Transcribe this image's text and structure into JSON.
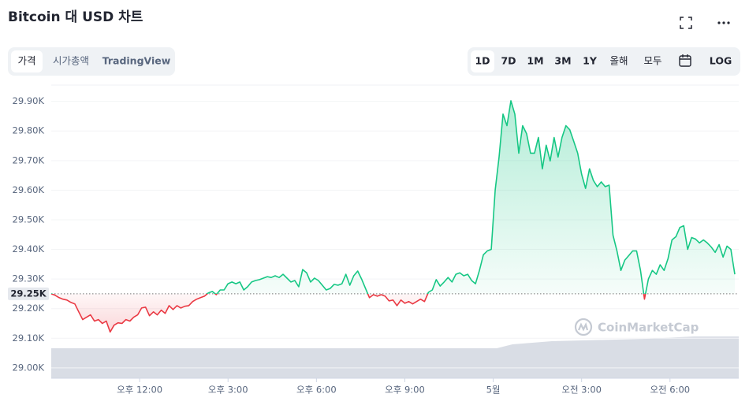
{
  "title": "Bitcoin 대 USD 차트",
  "tabs": [
    "가격",
    "시가총액",
    "TradingView"
  ],
  "ranges": [
    "1D",
    "7D",
    "1M",
    "3M",
    "1Y",
    "올해",
    "모두"
  ],
  "log": "LOG",
  "chart_data": {
    "type": "line",
    "watermark": "CoinMarketCap",
    "up_color": "#16c784",
    "down_color": "#ea3943",
    "baseline": {
      "value": 29250,
      "label": "29.25K"
    },
    "xlim": [
      0,
      1400
    ],
    "xticks": [
      {
        "value": 180,
        "label": "오후 12:00"
      },
      {
        "value": 360,
        "label": "오후 3:00"
      },
      {
        "value": 540,
        "label": "오후 6:00"
      },
      {
        "value": 720,
        "label": "오후 9:00"
      },
      {
        "value": 900,
        "label": "5월"
      },
      {
        "value": 1080,
        "label": "오전 3:00"
      },
      {
        "value": 1260,
        "label": "오전 6:00"
      }
    ],
    "ylim": [
      28965,
      29955
    ],
    "yticks": [
      {
        "value": 29000,
        "label": "29.00K"
      },
      {
        "value": 29100,
        "label": "29.10K"
      },
      {
        "value": 29200,
        "label": "29.20K"
      },
      {
        "value": 29300,
        "label": "29.30K"
      },
      {
        "value": 29400,
        "label": "29.40K"
      },
      {
        "value": 29500,
        "label": "29.50K"
      },
      {
        "value": 29600,
        "label": "29.60K"
      },
      {
        "value": 29700,
        "label": "29.70K"
      },
      {
        "value": 29800,
        "label": "29.80K"
      },
      {
        "value": 29900,
        "label": "29.90K"
      }
    ],
    "grid": true,
    "x": [
      0,
      8,
      16,
      24,
      32,
      40,
      48,
      56,
      64,
      72,
      80,
      88,
      96,
      104,
      112,
      120,
      128,
      136,
      144,
      152,
      160,
      168,
      176,
      184,
      192,
      200,
      208,
      216,
      224,
      232,
      240,
      248,
      256,
      264,
      272,
      280,
      288,
      296,
      304,
      312,
      320,
      328,
      336,
      344,
      352,
      360,
      368,
      376,
      384,
      392,
      400,
      408,
      416,
      424,
      432,
      440,
      448,
      456,
      464,
      472,
      480,
      488,
      496,
      504,
      512,
      520,
      528,
      536,
      544,
      552,
      560,
      568,
      576,
      584,
      592,
      600,
      608,
      616,
      624,
      632,
      640,
      648,
      656,
      664,
      672,
      680,
      688,
      696,
      704,
      712,
      720,
      728,
      736,
      744,
      752,
      760,
      768,
      776,
      784,
      792,
      800,
      808,
      816,
      824,
      832,
      840,
      848,
      856,
      864,
      872,
      880,
      888,
      896,
      904,
      912,
      920,
      928,
      936,
      944,
      952,
      960,
      968,
      976,
      984,
      992,
      1000,
      1008,
      1016,
      1024,
      1032,
      1040,
      1048,
      1056,
      1064,
      1072,
      1080,
      1088,
      1096,
      1104,
      1112,
      1120,
      1128,
      1136,
      1144,
      1152,
      1160,
      1168,
      1176,
      1184,
      1192,
      1200,
      1208,
      1216,
      1224,
      1232,
      1240,
      1248,
      1256,
      1264,
      1272,
      1280,
      1288,
      1296,
      1304,
      1312,
      1320,
      1328,
      1336,
      1344,
      1352,
      1360,
      1368,
      1376,
      1384,
      1392
    ],
    "values": [
      29250,
      29245,
      29237,
      29232,
      29229,
      29221,
      29216,
      29189,
      29163,
      29171,
      29179,
      29158,
      29163,
      29150,
      29158,
      29121,
      29144,
      29152,
      29150,
      29163,
      29158,
      29171,
      29179,
      29202,
      29205,
      29176,
      29189,
      29179,
      29195,
      29184,
      29210,
      29197,
      29210,
      29202,
      29208,
      29210,
      29224,
      29232,
      29237,
      29242,
      29253,
      29258,
      29247,
      29263,
      29263,
      29284,
      29290,
      29284,
      29290,
      29263,
      29274,
      29290,
      29295,
      29298,
      29303,
      29308,
      29305,
      29311,
      29305,
      29316,
      29303,
      29290,
      29295,
      29274,
      29332,
      29321,
      29290,
      29303,
      29295,
      29279,
      29263,
      29268,
      29282,
      29279,
      29284,
      29316,
      29279,
      29311,
      29327,
      29300,
      29268,
      29237,
      29247,
      29242,
      29247,
      29242,
      29226,
      29229,
      29210,
      29229,
      29218,
      29224,
      29216,
      29224,
      29232,
      29224,
      29255,
      29263,
      29298,
      29276,
      29290,
      29305,
      29290,
      29316,
      29321,
      29311,
      29316,
      29295,
      29284,
      29329,
      29382,
      29395,
      29400,
      29601,
      29712,
      29857,
      29818,
      29902,
      29857,
      29725,
      29818,
      29791,
      29725,
      29725,
      29778,
      29672,
      29752,
      29699,
      29778,
      29712,
      29778,
      29818,
      29804,
      29765,
      29725,
      29654,
      29606,
      29672,
      29633,
      29612,
      29628,
      29612,
      29617,
      29448,
      29395,
      29329,
      29364,
      29379,
      29395,
      29395,
      29329,
      29232,
      29300,
      29329,
      29316,
      29348,
      29329,
      29369,
      29432,
      29443,
      29474,
      29480,
      29400,
      29440,
      29435,
      29422,
      29432,
      29422,
      29408,
      29390,
      29416,
      29374,
      29411,
      29400,
      29316
    ]
  }
}
